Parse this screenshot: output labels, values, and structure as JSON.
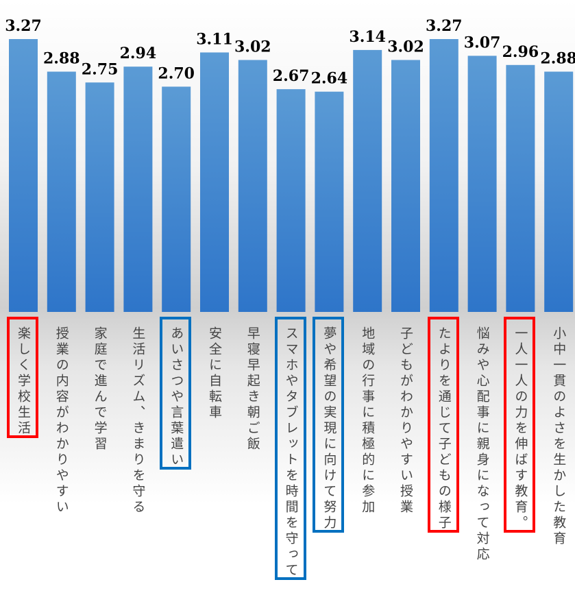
{
  "chart_data": {
    "type": "bar",
    "categories": [
      "楽しく学校生活",
      "授業の内容がわかりやすい",
      "家庭で進んで学習",
      "生活リズム、きまりを守る",
      "あいさつや言葉遣い",
      "安全に自転車",
      "早寝早起き朝ご飯",
      "スマホやタブレットを時間を守って",
      "夢や希望の実現に向けて努力",
      "地域の行事に積極的に参加",
      "子どもがわかりやすい授業",
      "たよりを通じて子どもの様子",
      "悩みや心配事に親身になって対応",
      "一人一人の力を伸ばす教育。",
      "小中一貫のよさを生かした教育"
    ],
    "values": [
      3.27,
      2.88,
      2.75,
      2.94,
      2.7,
      3.11,
      3.02,
      2.67,
      2.64,
      3.14,
      3.02,
      3.27,
      3.07,
      2.96,
      2.88
    ],
    "data_labels": [
      "3.27",
      "2.88",
      "2.75",
      "2.94",
      "2.70",
      "3.11",
      "3.02",
      "2.67",
      "2.64",
      "3.14",
      "3.02",
      "3.27",
      "3.07",
      "2.96",
      "2.88"
    ],
    "highlight_red": [
      0,
      11,
      13
    ],
    "highlight_blue": [
      4,
      7,
      8
    ],
    "colors": {
      "bar_top": "#5b9bd5",
      "bar_bottom": "#2e75c9",
      "label_text": "#444444",
      "value_text": "#000000",
      "red_box": "#ff0000",
      "blue_box": "#0070c0"
    }
  }
}
